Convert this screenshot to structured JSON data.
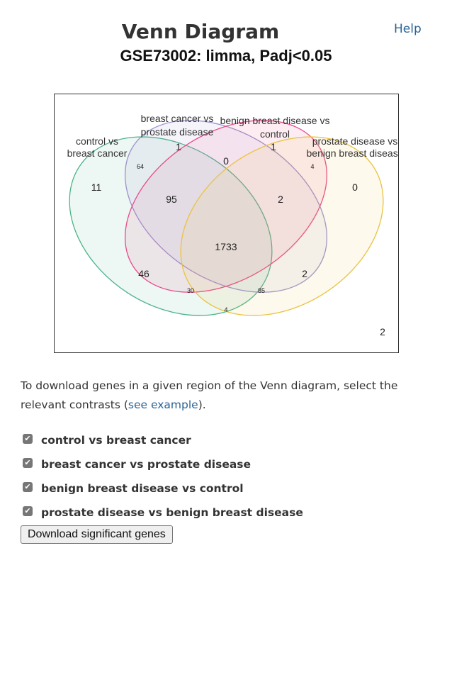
{
  "page": {
    "title": "Venn Diagram",
    "help_label": "Help",
    "subtitle": "GSE73002: limma, Padj<0.05"
  },
  "venn": {
    "sets": [
      {
        "name_lines": [
          "control vs",
          "breast cancer"
        ],
        "color": "#4db38a"
      },
      {
        "name_lines": [
          "breast cancer vs",
          "prostate disease"
        ],
        "color": "#9d92cc"
      },
      {
        "name_lines": [
          "benign breast disease vs",
          "control"
        ],
        "color": "#e84a8a"
      },
      {
        "name_lines": [
          "prostate disease vs",
          "benign breast disease"
        ],
        "color": "#e9c341"
      }
    ],
    "counts": {
      "A_only": "11",
      "B_only": "1",
      "C_only": "1",
      "D_only": "0",
      "AB": "64",
      "AC": "46",
      "AD": "4",
      "BC": "0",
      "BD": "2",
      "CD": "4",
      "ABC": "95",
      "ACD": "30",
      "BCD": "2",
      "ABD": "85",
      "ABCD": "1733",
      "outside": "2"
    }
  },
  "instructions": {
    "before_link": "To download genes in a given region of the Venn diagram, select the relevant contrasts (",
    "link_text": "see example",
    "after_link": ")."
  },
  "contrasts": [
    {
      "label": "control vs breast cancer",
      "checked": true
    },
    {
      "label": "breast cancer vs prostate disease",
      "checked": true
    },
    {
      "label": "benign breast disease vs control",
      "checked": true
    },
    {
      "label": "prostate disease vs benign breast disease",
      "checked": true
    }
  ],
  "download_button": "Download significant genes"
}
